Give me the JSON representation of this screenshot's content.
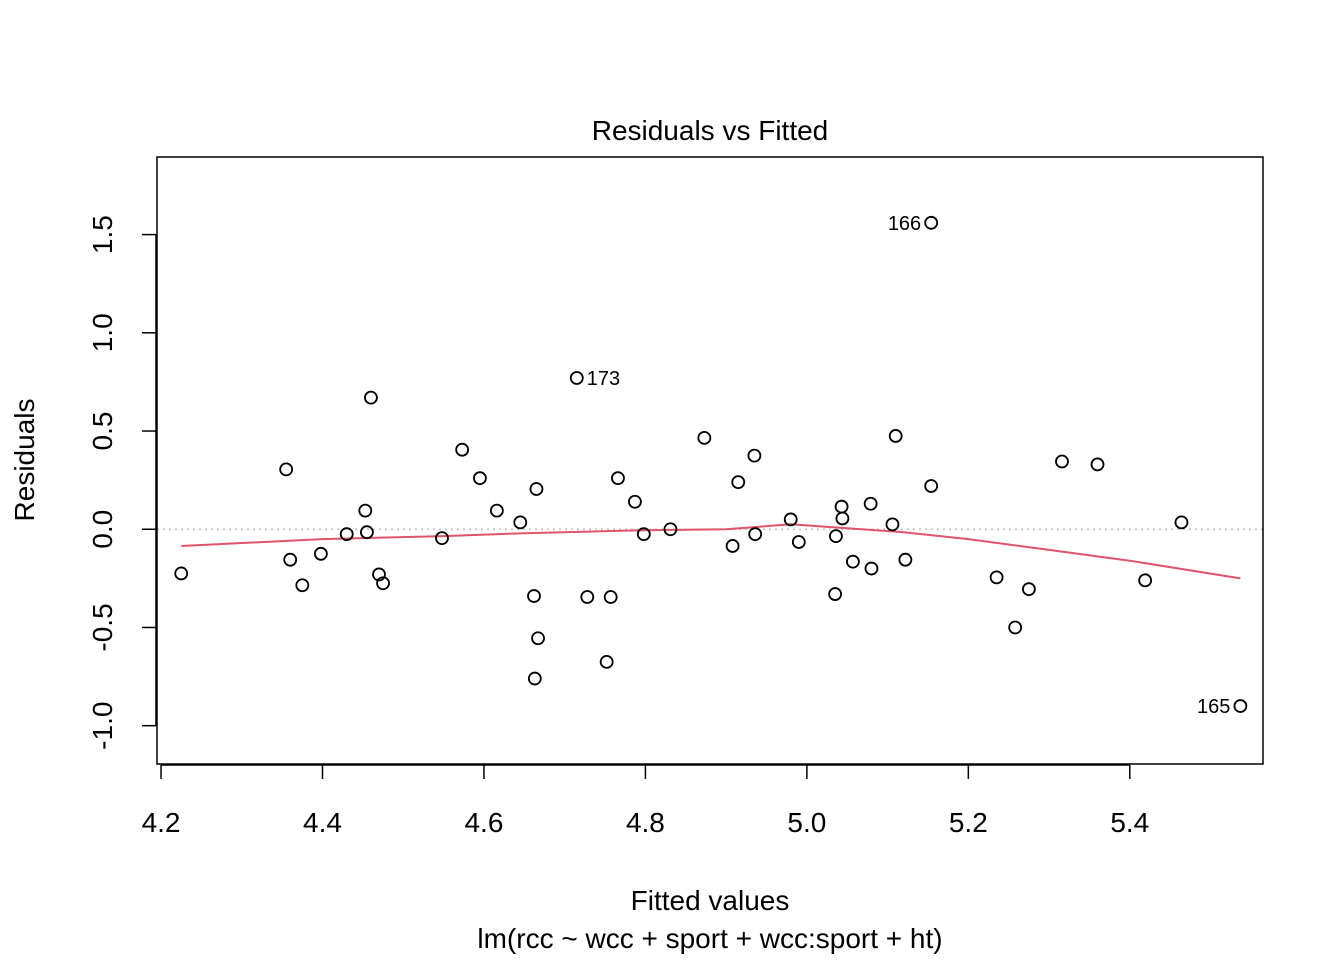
{
  "chart_data": {
    "type": "scatter",
    "title": "Residuals vs Fitted",
    "xlabel": "Fitted values",
    "subtitle": "lm(rcc ~ wcc + sport + wcc:sport + ht)",
    "ylabel": "Residuals",
    "xlim": [
      4.195,
      5.565
    ],
    "ylim": [
      -1.195,
      1.895
    ],
    "x_ticks": [
      4.2,
      4.4,
      4.6,
      4.8,
      5.0,
      5.2,
      5.4
    ],
    "x_tick_labels": [
      "4.2",
      "4.4",
      "4.6",
      "4.8",
      "5.0",
      "5.2",
      "5.4"
    ],
    "y_ticks": [
      -1.0,
      -0.5,
      0.0,
      0.5,
      1.0,
      1.5
    ],
    "y_tick_labels": [
      "-1.0",
      "-0.5",
      "0.0",
      "0.5",
      "1.0",
      "1.5"
    ],
    "reference_line": {
      "y": 0,
      "style": "dotted",
      "color": "#bebebe"
    },
    "grid": false,
    "legend": "none",
    "point_color": "#000000",
    "smooth_color": "#DF536B",
    "points": [
      {
        "x": 4.225,
        "y": -0.225
      },
      {
        "x": 4.355,
        "y": 0.305
      },
      {
        "x": 4.36,
        "y": -0.155
      },
      {
        "x": 4.375,
        "y": -0.285
      },
      {
        "x": 4.398,
        "y": -0.125
      },
      {
        "x": 4.43,
        "y": -0.025
      },
      {
        "x": 4.453,
        "y": 0.095
      },
      {
        "x": 4.455,
        "y": -0.015
      },
      {
        "x": 4.46,
        "y": 0.67
      },
      {
        "x": 4.47,
        "y": -0.23
      },
      {
        "x": 4.475,
        "y": -0.275
      },
      {
        "x": 4.548,
        "y": -0.045
      },
      {
        "x": 4.573,
        "y": 0.405
      },
      {
        "x": 4.595,
        "y": 0.26
      },
      {
        "x": 4.616,
        "y": 0.095
      },
      {
        "x": 4.645,
        "y": 0.035
      },
      {
        "x": 4.662,
        "y": -0.34
      },
      {
        "x": 4.663,
        "y": -0.76
      },
      {
        "x": 4.665,
        "y": 0.205
      },
      {
        "x": 4.667,
        "y": -0.555
      },
      {
        "x": 4.715,
        "y": 0.77,
        "label": "173"
      },
      {
        "x": 4.728,
        "y": -0.345
      },
      {
        "x": 4.752,
        "y": -0.675
      },
      {
        "x": 4.757,
        "y": -0.345
      },
      {
        "x": 4.766,
        "y": 0.26
      },
      {
        "x": 4.787,
        "y": 0.14
      },
      {
        "x": 4.798,
        "y": -0.025
      },
      {
        "x": 4.831,
        "y": 0.0
      },
      {
        "x": 4.873,
        "y": 0.465
      },
      {
        "x": 4.908,
        "y": -0.085
      },
      {
        "x": 4.915,
        "y": 0.24
      },
      {
        "x": 4.935,
        "y": 0.375
      },
      {
        "x": 4.936,
        "y": -0.025
      },
      {
        "x": 4.98,
        "y": 0.05
      },
      {
        "x": 4.99,
        "y": -0.065
      },
      {
        "x": 5.035,
        "y": -0.33
      },
      {
        "x": 5.036,
        "y": -0.035
      },
      {
        "x": 5.043,
        "y": 0.115
      },
      {
        "x": 5.044,
        "y": 0.055
      },
      {
        "x": 5.057,
        "y": -0.165
      },
      {
        "x": 5.079,
        "y": 0.13
      },
      {
        "x": 5.08,
        "y": -0.2
      },
      {
        "x": 5.106,
        "y": 0.025
      },
      {
        "x": 5.11,
        "y": 0.475
      },
      {
        "x": 5.122,
        "y": -0.155
      },
      {
        "x": 5.154,
        "y": 1.56,
        "label": "166"
      },
      {
        "x": 5.154,
        "y": 0.22
      },
      {
        "x": 5.235,
        "y": -0.245
      },
      {
        "x": 5.258,
        "y": -0.5
      },
      {
        "x": 5.275,
        "y": -0.305
      },
      {
        "x": 5.316,
        "y": 0.345
      },
      {
        "x": 5.36,
        "y": 0.33
      },
      {
        "x": 5.419,
        "y": -0.26
      },
      {
        "x": 5.464,
        "y": 0.035
      },
      {
        "x": 5.537,
        "y": -0.9,
        "label": "165"
      }
    ],
    "smooth_line": [
      {
        "x": 4.225,
        "y": -0.085
      },
      {
        "x": 4.4,
        "y": -0.05
      },
      {
        "x": 4.55,
        "y": -0.035
      },
      {
        "x": 4.65,
        "y": -0.02
      },
      {
        "x": 4.8,
        "y": -0.005
      },
      {
        "x": 4.9,
        "y": 0.0
      },
      {
        "x": 4.98,
        "y": 0.025
      },
      {
        "x": 5.05,
        "y": 0.005
      },
      {
        "x": 5.12,
        "y": -0.015
      },
      {
        "x": 5.2,
        "y": -0.05
      },
      {
        "x": 5.3,
        "y": -0.105
      },
      {
        "x": 5.4,
        "y": -0.16
      },
      {
        "x": 5.537,
        "y": -0.25
      }
    ]
  }
}
